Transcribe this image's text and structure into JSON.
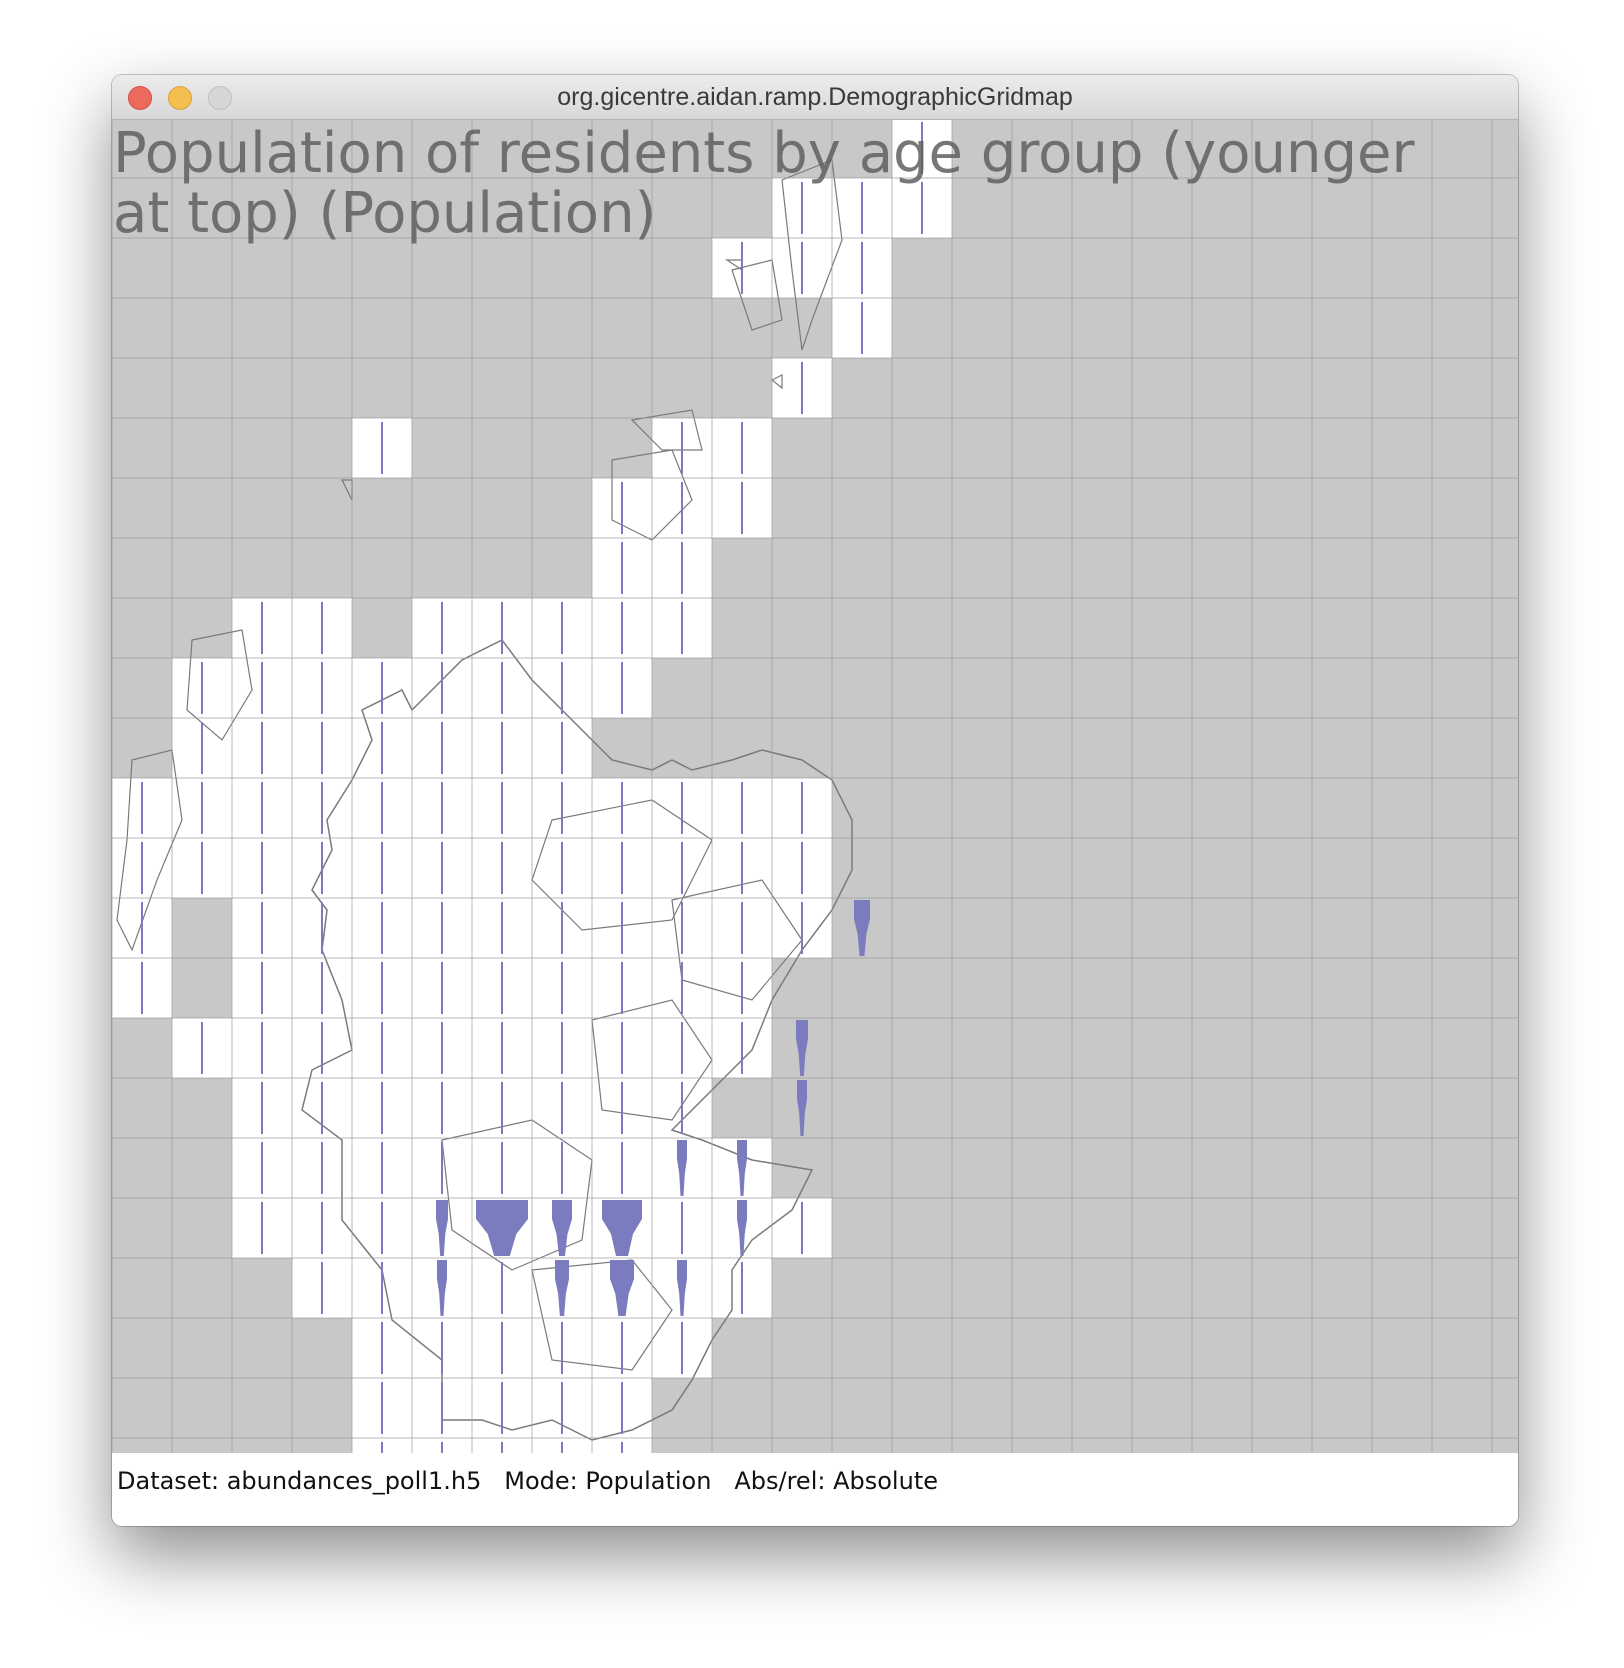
{
  "window": {
    "title": "org.gicentre.aidan.ramp.DemographicGridmap"
  },
  "map": {
    "title_line1": "Population of residents by age group (younger",
    "title_line2": "at top) (Population)",
    "colors": {
      "ocean_cell": "#c8c8c8",
      "land_cell": "#ffffff",
      "grid_line": "#9a9a9a",
      "coastline": "#7a7a7a",
      "population_glyph": "#7b7bbf"
    }
  },
  "status": {
    "dataset_label": "Dataset:",
    "dataset_value": "abundances_poll1.h5",
    "mode_label": "Mode:",
    "mode_value": "Population",
    "absrel_label": "Abs/rel:",
    "absrel_value": "Absolute"
  }
}
